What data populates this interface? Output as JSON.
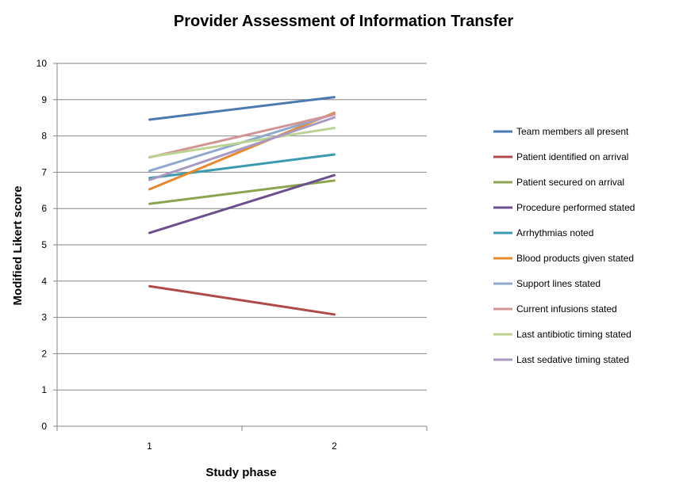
{
  "chart_data": {
    "type": "line",
    "title": "Provider Assessment of Information Transfer",
    "xlabel": "Study phase",
    "ylabel": "Modified Likert score",
    "categories": [
      "1",
      "2"
    ],
    "ylim": [
      0,
      10
    ],
    "yticks": [
      0,
      1,
      2,
      3,
      4,
      5,
      6,
      7,
      8,
      9,
      10
    ],
    "grid": true,
    "legend": "right",
    "series": [
      {
        "name": "Team members all present",
        "color": "#4a7ab0",
        "values": [
          8.45,
          9.07
        ]
      },
      {
        "name": "Patient identified on arrival",
        "color": "#b04a48",
        "values": [
          3.86,
          3.08
        ]
      },
      {
        "name": "Patient secured on arrival",
        "color": "#8ba54e",
        "values": [
          6.13,
          6.77
        ]
      },
      {
        "name": "Procedure performed stated",
        "color": "#6b4f8e",
        "values": [
          5.33,
          6.92
        ]
      },
      {
        "name": "Arrhythmias noted",
        "color": "#3b9aaf",
        "values": [
          6.84,
          7.49
        ]
      },
      {
        "name": "Blood products given stated",
        "color": "#e8892e",
        "values": [
          6.53,
          8.64
        ]
      },
      {
        "name": "Support lines stated",
        "color": "#8fa8cc",
        "values": [
          7.04,
          8.6
        ]
      },
      {
        "name": "Current infusions stated",
        "color": "#d39593",
        "values": [
          7.41,
          8.59
        ]
      },
      {
        "name": "Last antibiotic timing stated",
        "color": "#bcd493",
        "values": [
          7.42,
          8.22
        ]
      },
      {
        "name": "Last sedative timing stated",
        "color": "#a799c2",
        "values": [
          6.79,
          8.51
        ]
      }
    ]
  }
}
